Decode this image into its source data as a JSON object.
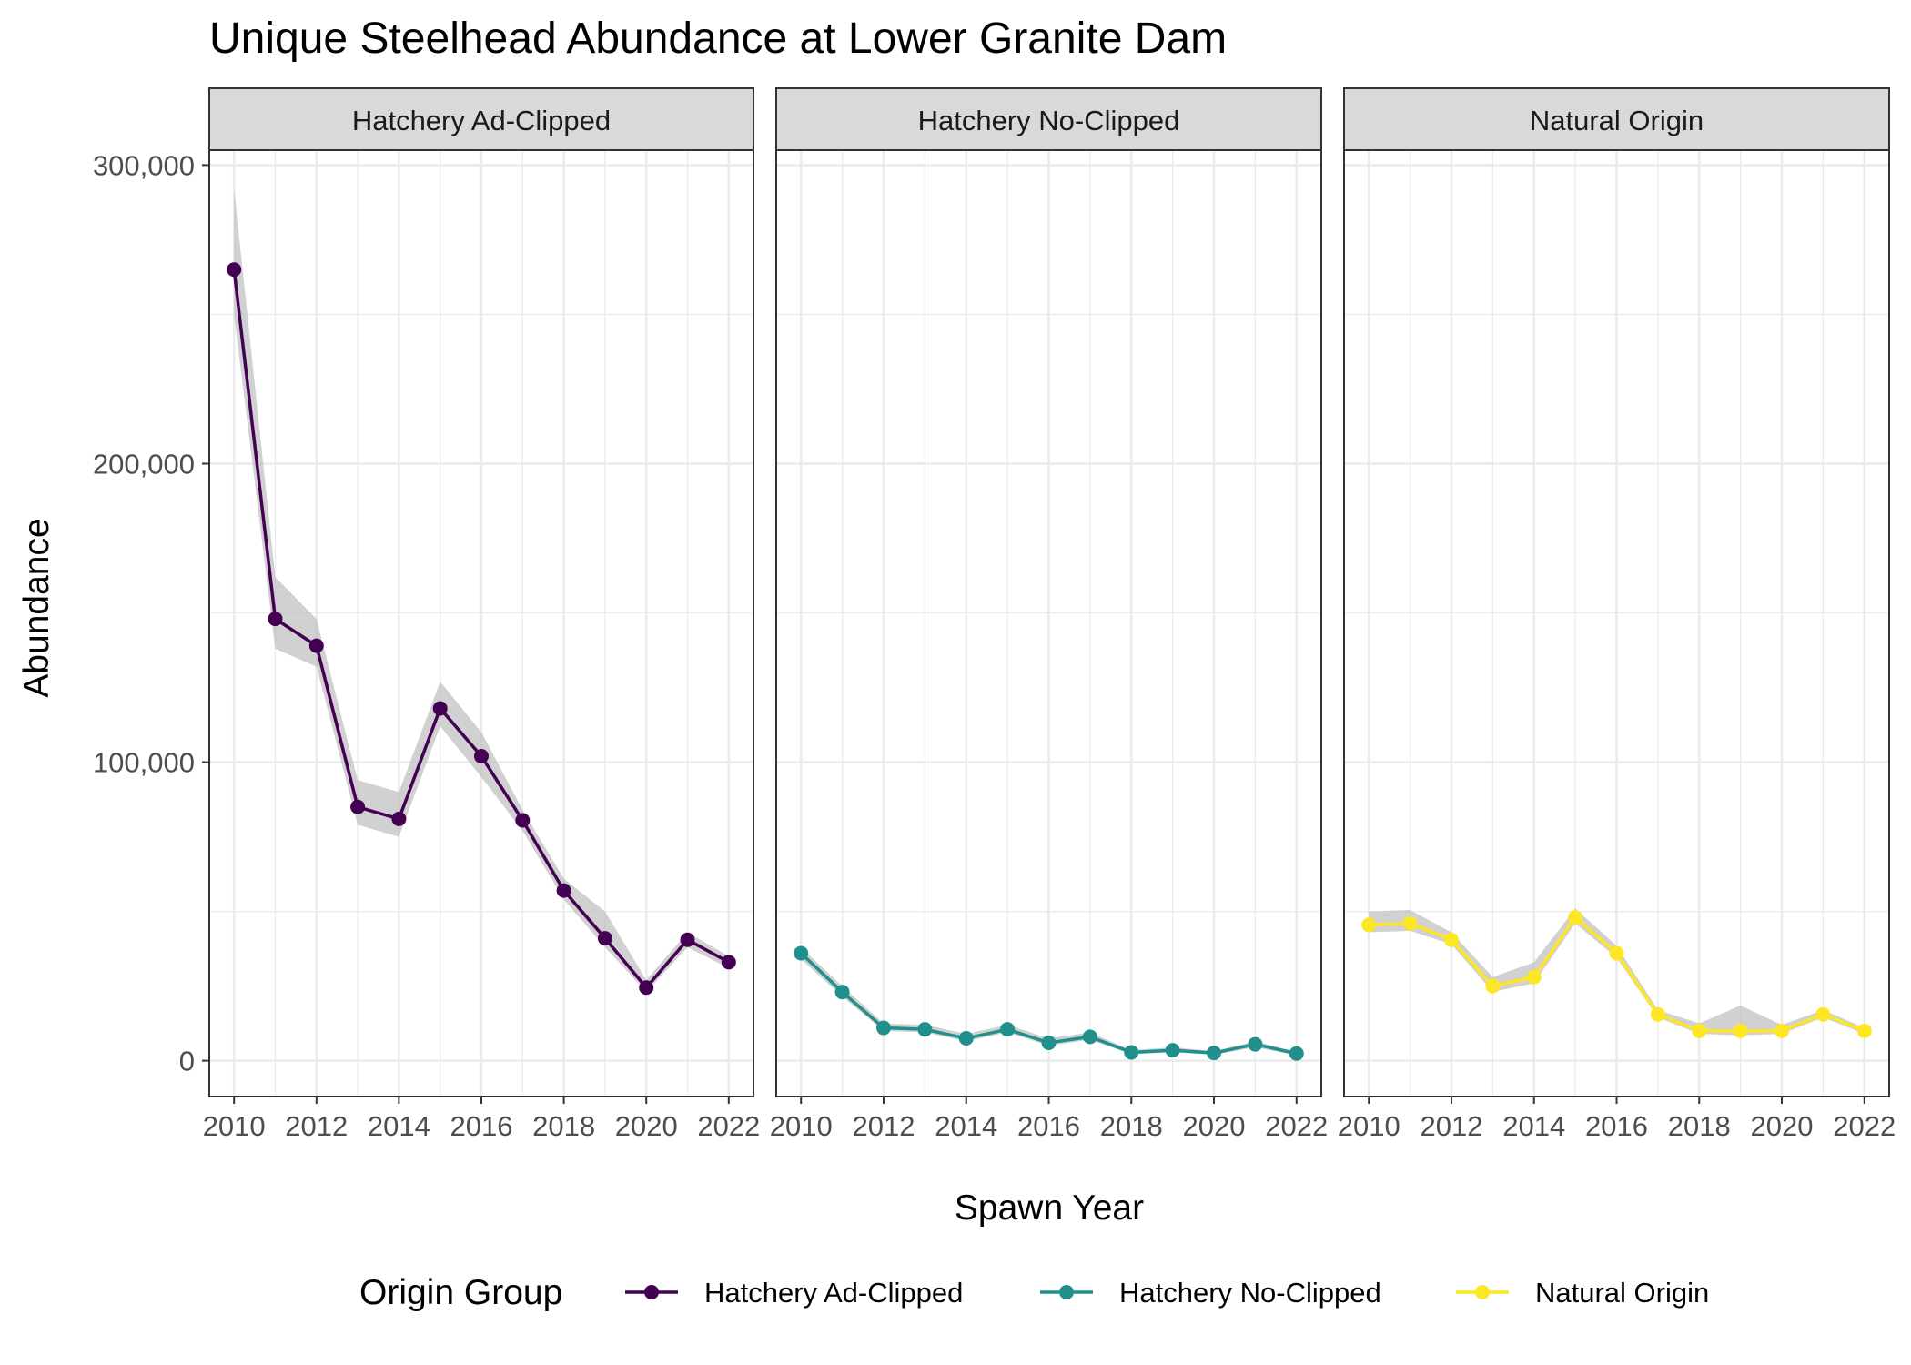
{
  "chart_data": {
    "type": "line",
    "title": "Unique Steelhead Abundance at Lower Granite Dam",
    "xlabel": "Spawn Year",
    "ylabel": "Abundance",
    "ylim": [
      -12000,
      305000
    ],
    "xlim": [
      2009.4,
      2022.6
    ],
    "y_ticks": [
      0,
      100000,
      200000,
      300000
    ],
    "y_tick_labels": [
      "0",
      "100,000",
      "200,000",
      "300,000"
    ],
    "x_ticks": [
      2010,
      2012,
      2014,
      2016,
      2018,
      2020,
      2022
    ],
    "x_tick_labels": [
      "2010",
      "2012",
      "2014",
      "2016",
      "2018",
      "2020",
      "2022"
    ],
    "grid": true,
    "legend": {
      "title": "Origin Group",
      "position": "bottom",
      "entries": [
        "Hatchery Ad-Clipped",
        "Hatchery No-Clipped",
        "Natural Origin"
      ]
    },
    "series": [
      {
        "name": "Hatchery Ad-Clipped",
        "color": "#440154",
        "x": [
          2010,
          2011,
          2012,
          2013,
          2014,
          2015,
          2016,
          2017,
          2018,
          2019,
          2020,
          2021,
          2022
        ],
        "values": [
          265000,
          148000,
          139000,
          85000,
          81000,
          118000,
          102000,
          80500,
          57000,
          41000,
          24500,
          40500,
          33000
        ],
        "lower": [
          250000,
          138000,
          132000,
          79000,
          75000,
          112000,
          95000,
          77000,
          54000,
          38000,
          23000,
          38000,
          31000
        ],
        "upper": [
          292000,
          162000,
          148000,
          94000,
          90000,
          127000,
          110000,
          84000,
          61000,
          50000,
          27000,
          43000,
          35000
        ]
      },
      {
        "name": "Hatchery No-Clipped",
        "color": "#21908C",
        "x": [
          2010,
          2011,
          2012,
          2013,
          2014,
          2015,
          2016,
          2017,
          2018,
          2019,
          2020,
          2021,
          2022
        ],
        "values": [
          36000,
          23000,
          11000,
          10500,
          7500,
          10500,
          6000,
          8000,
          2800,
          3500,
          2600,
          5500,
          2400
        ],
        "lower": [
          34000,
          21500,
          10000,
          9500,
          6500,
          9500,
          5000,
          7000,
          2200,
          2800,
          2000,
          4500,
          1800
        ],
        "upper": [
          38000,
          25000,
          12500,
          12000,
          9000,
          12000,
          7500,
          9500,
          3500,
          4500,
          3200,
          6500,
          3000
        ]
      },
      {
        "name": "Natural Origin",
        "color": "#FDE725",
        "x": [
          2010,
          2011,
          2012,
          2013,
          2014,
          2015,
          2016,
          2017,
          2018,
          2019,
          2020,
          2021,
          2022
        ],
        "values": [
          45500,
          46000,
          40500,
          25000,
          28000,
          48000,
          36000,
          15500,
          10000,
          10000,
          10000,
          15500,
          10000
        ],
        "lower": [
          43000,
          43500,
          39000,
          23000,
          26000,
          46000,
          34500,
          14500,
          9000,
          8500,
          9000,
          14500,
          9000
        ],
        "upper": [
          50000,
          50500,
          43000,
          28000,
          33000,
          51000,
          38500,
          17000,
          12500,
          18500,
          12000,
          17000,
          11000
        ]
      }
    ],
    "band_color": "#BEBEBE"
  }
}
